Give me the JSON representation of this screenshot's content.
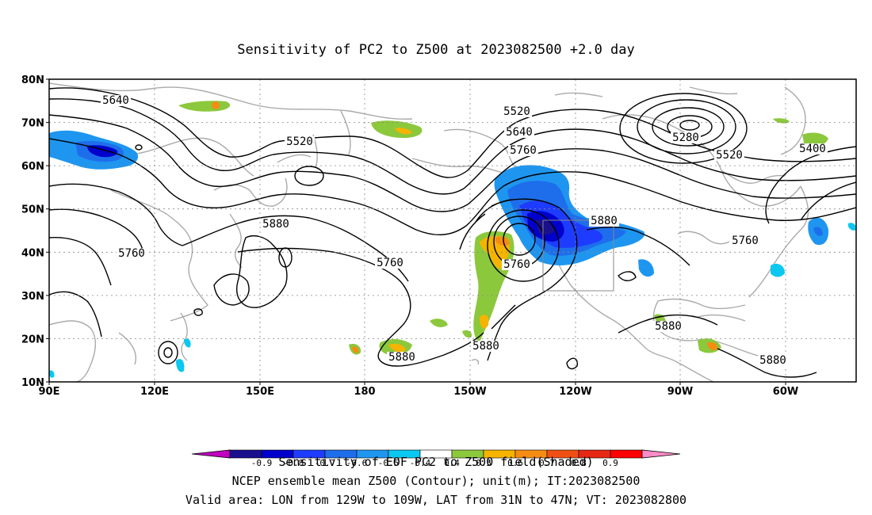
{
  "title": "Sensitivity of PC2 to Z500 at 2023082500 +2.0 day",
  "lat_labels": [
    "80N",
    "70N",
    "60N",
    "50N",
    "40N",
    "30N",
    "20N",
    "10N"
  ],
  "lon_labels": [
    "90E",
    "120E",
    "150E",
    "180",
    "150W",
    "120W",
    "90W",
    "60W"
  ],
  "contour_labels": [
    {
      "id": "c5640a",
      "text": "5640"
    },
    {
      "id": "c5520a",
      "text": "5520"
    },
    {
      "id": "c5520b",
      "text": "5520"
    },
    {
      "id": "c5640b",
      "text": "5640"
    },
    {
      "id": "c5760a",
      "text": "5760"
    },
    {
      "id": "c5280",
      "text": "5280"
    },
    {
      "id": "c5520c",
      "text": "5520"
    },
    {
      "id": "c5400",
      "text": "5400"
    },
    {
      "id": "c5880a",
      "text": "5880"
    },
    {
      "id": "c5760b",
      "text": "5760"
    },
    {
      "id": "c5760c",
      "text": "5760"
    },
    {
      "id": "c5760d",
      "text": "5760"
    },
    {
      "id": "c5880b",
      "text": "5880"
    },
    {
      "id": "c5760e",
      "text": "5760"
    },
    {
      "id": "c5880c",
      "text": "5880"
    },
    {
      "id": "c5880d",
      "text": "5880"
    },
    {
      "id": "c5880e",
      "text": "5880"
    },
    {
      "id": "c5880f",
      "text": "5880"
    }
  ],
  "colorbar": {
    "colors": [
      "#1a0f8c",
      "#0000cd",
      "#1e3cff",
      "#1e6eeb",
      "#1e96f0",
      "#0ac8f0",
      "#ffffff",
      "#8cc83c",
      "#f5b400",
      "#f58c14",
      "#f05014",
      "#e62814",
      "#ff0000"
    ],
    "end_low_color": "#c000c0",
    "end_high_color": "#ff8cc8",
    "tick_labels": [
      "-0.9",
      "-0.8",
      "-0.7",
      "-0.6",
      "-0.5",
      "-0.4",
      "0.4",
      "0.5",
      "0.6",
      "0.7",
      "0.8",
      "0.9"
    ]
  },
  "caption_lines": [
    "Sensitivity of EOF PC2 to Z500 field(Shaded)",
    "NCEP ensemble mean Z500 (Contour); unit(m); IT:2023082500",
    "Valid area: LON from 129W to 109W, LAT from 31N to 47N; VT: 2023082800"
  ]
}
